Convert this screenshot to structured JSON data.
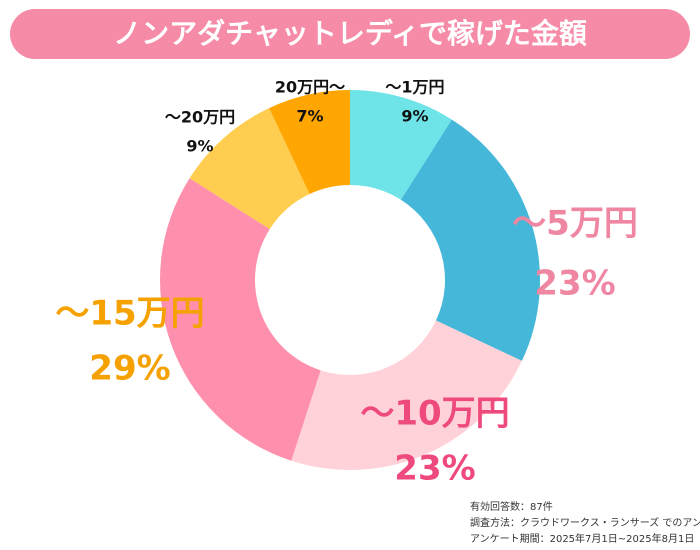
{
  "chart_data": {
    "type": "donut",
    "title": "ノンアダチャットレディで稼げた金額",
    "categories": [
      "～1万円",
      "～5万円",
      "～10万円",
      "～15万円",
      "～20万円",
      "20万円～"
    ],
    "values": [
      9,
      23,
      23,
      29,
      9,
      7
    ],
    "value_labels": [
      "9%",
      "23%",
      "23%",
      "29%",
      "9%",
      "7%"
    ],
    "colors": [
      "#6ee4e9",
      "#45b7d9",
      "#ffd2d9",
      "#ff90ad",
      "#ffcd4f",
      "#ffa602"
    ],
    "notes": [
      "有効回答数：87件",
      "調査方法：クラウドワークス・ランサーズ でのアンケート",
      "アンケート期間：2025年7月1日~2025年8月1日"
    ]
  }
}
